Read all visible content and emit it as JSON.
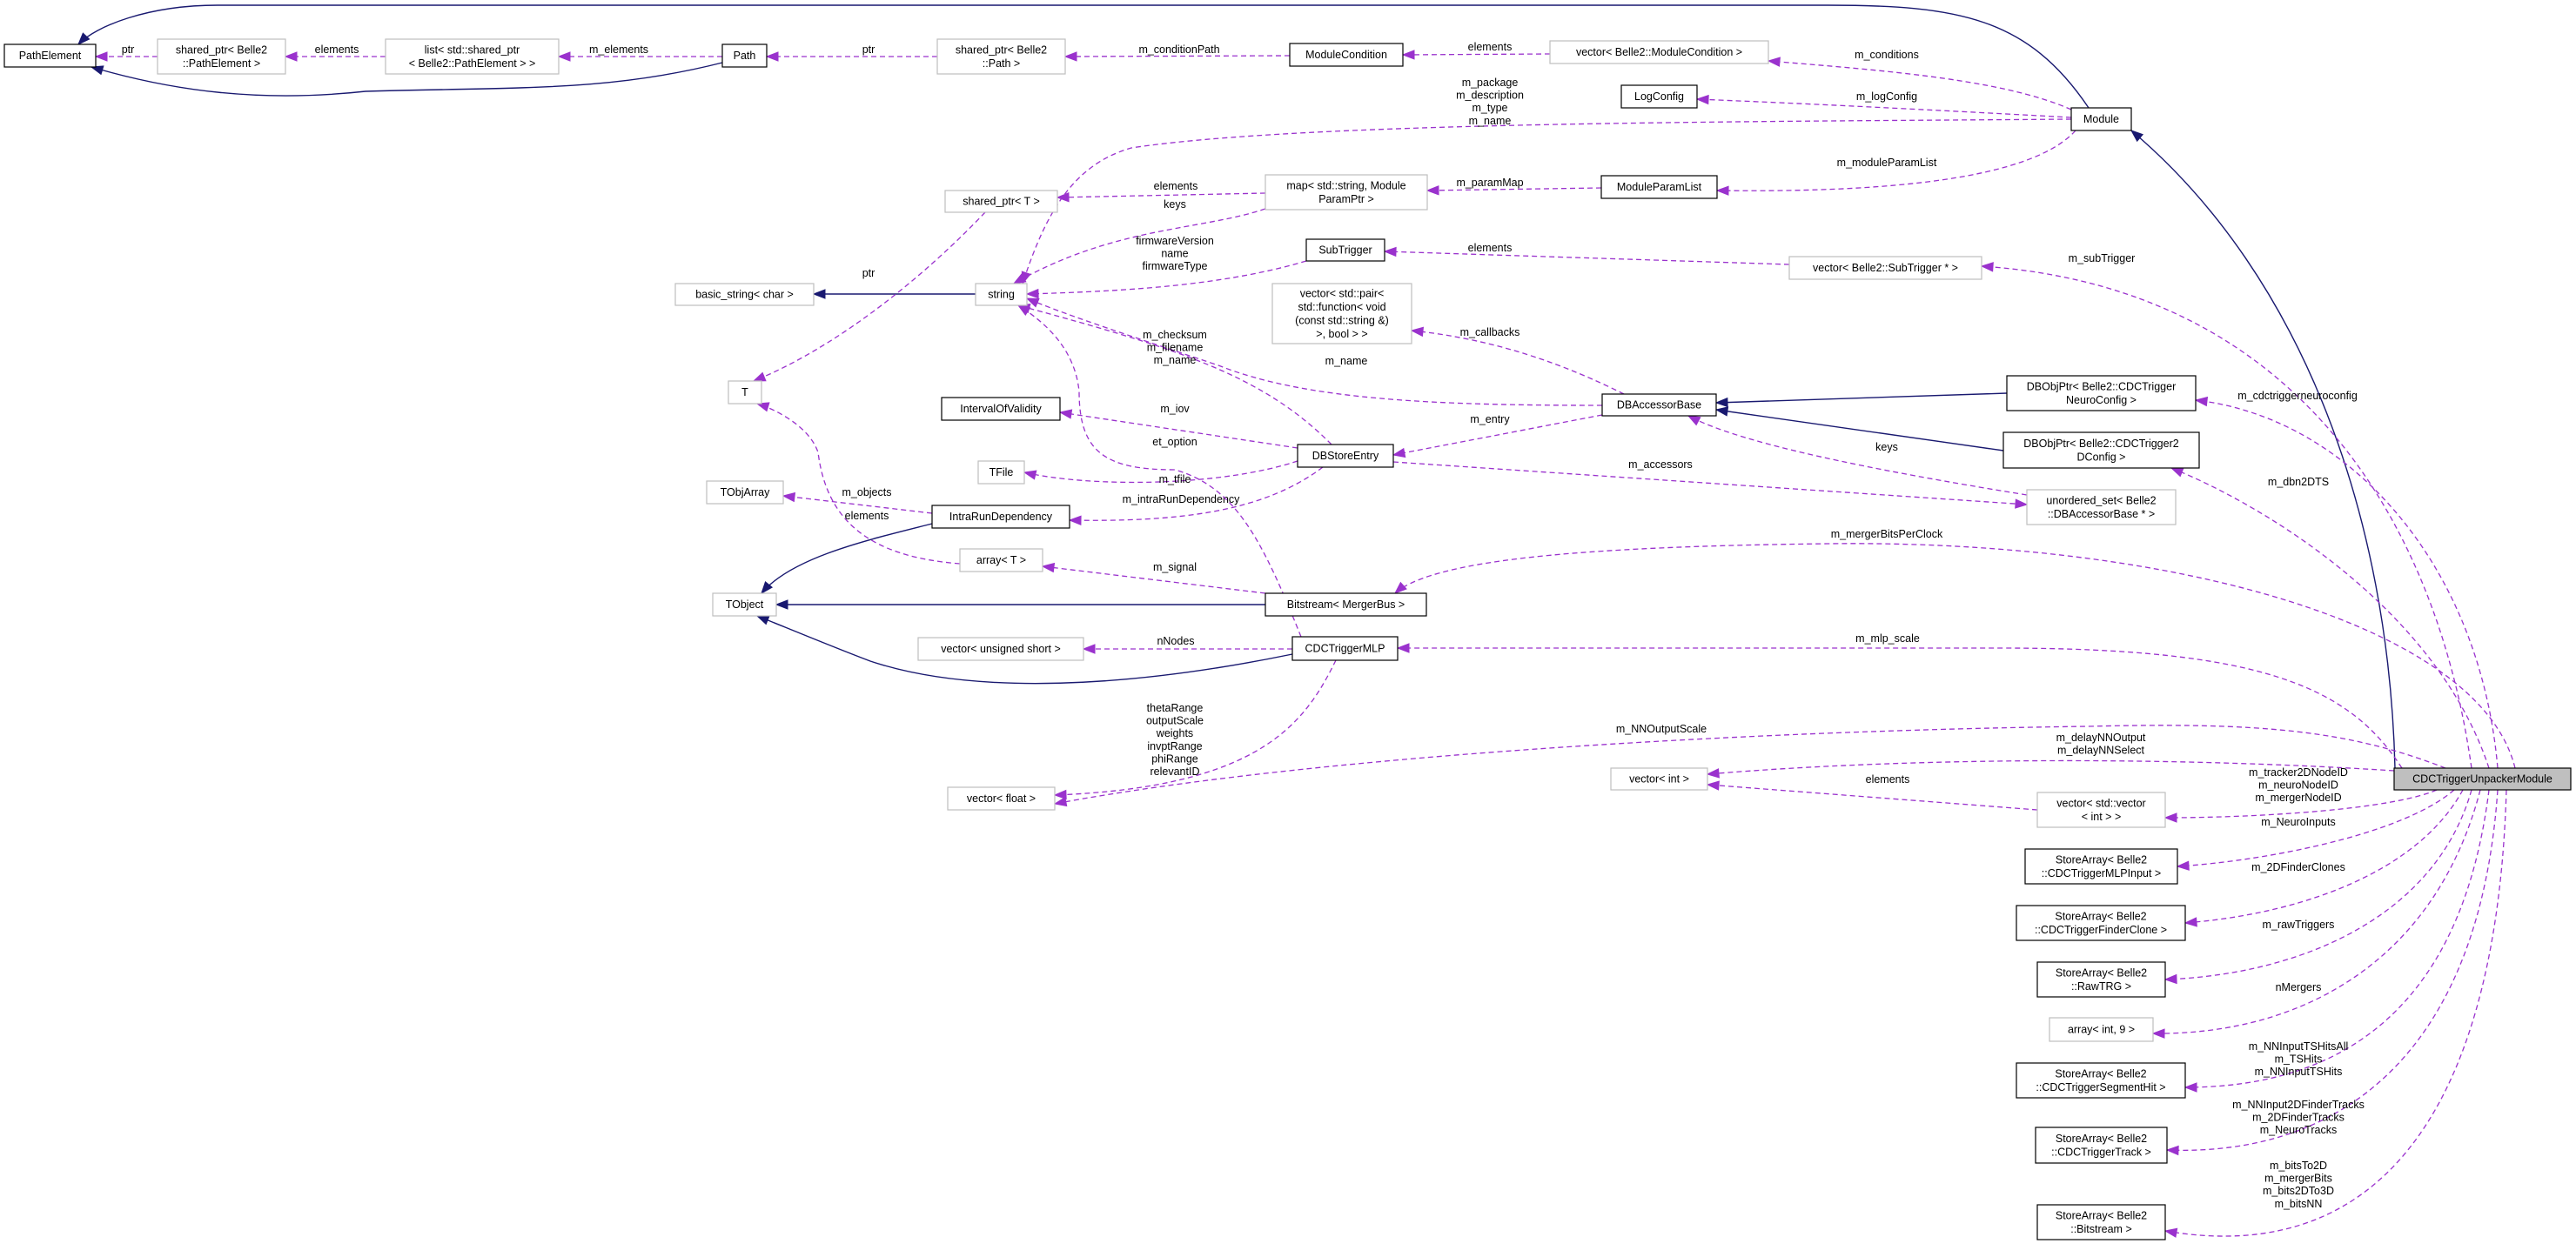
{
  "diagram": {
    "colors": {
      "inheritance": "#191970",
      "usage": "#9a32cd",
      "highlight_fill": "#bfbfbf",
      "documented_border": "#000000",
      "undocumented_border": "#bfbfbf"
    },
    "nodes": [
      {
        "id": "PathElement",
        "lines": [
          "PathElement"
        ],
        "documented": true
      },
      {
        "id": "spPE",
        "lines": [
          "shared_ptr< Belle2",
          "::PathElement >"
        ],
        "documented": false
      },
      {
        "id": "listSP",
        "lines": [
          "list< std::shared_ptr",
          "< Belle2::PathElement > >"
        ],
        "documented": false
      },
      {
        "id": "Path",
        "lines": [
          "Path"
        ],
        "documented": true
      },
      {
        "id": "spPath",
        "lines": [
          "shared_ptr< Belle2",
          "::Path >"
        ],
        "documented": false
      },
      {
        "id": "ModuleCondition",
        "lines": [
          "ModuleCondition"
        ],
        "documented": true
      },
      {
        "id": "vecMC",
        "lines": [
          "vector< Belle2::ModuleCondition >"
        ],
        "documented": false
      },
      {
        "id": "LogConfig",
        "lines": [
          "LogConfig"
        ],
        "documented": true
      },
      {
        "id": "Module",
        "lines": [
          "Module"
        ],
        "documented": true
      },
      {
        "id": "map",
        "lines": [
          "map< std::string, Module",
          "ParamPtr >"
        ],
        "documented": false
      },
      {
        "id": "ModuleParamList",
        "lines": [
          "ModuleParamList"
        ],
        "documented": true
      },
      {
        "id": "spT",
        "lines": [
          "shared_ptr< T >"
        ],
        "documented": false
      },
      {
        "id": "SubTrigger",
        "lines": [
          "SubTrigger"
        ],
        "documented": true
      },
      {
        "id": "vecSubTrig",
        "lines": [
          "vector< Belle2::SubTrigger * >"
        ],
        "documented": false
      },
      {
        "id": "basic_string",
        "lines": [
          "basic_string< char >"
        ],
        "documented": false
      },
      {
        "id": "string",
        "lines": [
          "string"
        ],
        "documented": false
      },
      {
        "id": "vecPair",
        "lines": [
          "vector< std::pair<",
          "std::function< void",
          "(const std::string &)",
          ">, bool > >"
        ],
        "documented": false
      },
      {
        "id": "T",
        "lines": [
          "T"
        ],
        "documented": false
      },
      {
        "id": "DBAccessorBase",
        "lines": [
          "DBAccessorBase"
        ],
        "documented": true
      },
      {
        "id": "DBObjNeuro",
        "lines": [
          "DBObjPtr< Belle2::CDCTrigger",
          "NeuroConfig >"
        ],
        "documented": true
      },
      {
        "id": "DBObj2D",
        "lines": [
          "DBObjPtr< Belle2::CDCTrigger2",
          "DConfig >"
        ],
        "documented": true
      },
      {
        "id": "IoV",
        "lines": [
          "IntervalOfValidity"
        ],
        "documented": true
      },
      {
        "id": "DBStoreEntry",
        "lines": [
          "DBStoreEntry"
        ],
        "documented": true
      },
      {
        "id": "TFile",
        "lines": [
          "TFile"
        ],
        "documented": false
      },
      {
        "id": "TObjArray",
        "lines": [
          "TObjArray"
        ],
        "documented": false
      },
      {
        "id": "unorderedSet",
        "lines": [
          "unordered_set< Belle2",
          "::DBAccessorBase * >"
        ],
        "documented": false
      },
      {
        "id": "IntraRun",
        "lines": [
          "IntraRunDependency"
        ],
        "documented": true
      },
      {
        "id": "arrayT",
        "lines": [
          "array< T >"
        ],
        "documented": false
      },
      {
        "id": "TObject",
        "lines": [
          "TObject"
        ],
        "documented": false
      },
      {
        "id": "Bitstream",
        "lines": [
          "Bitstream< MergerBus >"
        ],
        "documented": true
      },
      {
        "id": "MLP",
        "lines": [
          "CDCTriggerMLP"
        ],
        "documented": true
      },
      {
        "id": "vecUShort",
        "lines": [
          "vector< unsigned short >"
        ],
        "documented": false
      },
      {
        "id": "vecInt",
        "lines": [
          "vector< int >"
        ],
        "documented": false
      },
      {
        "id": "Unpacker",
        "lines": [
          "CDCTriggerUnpackerModule"
        ],
        "documented": true,
        "highlighted": true
      },
      {
        "id": "vecFloat",
        "lines": [
          "vector< float >"
        ],
        "documented": false
      },
      {
        "id": "vecVecInt",
        "lines": [
          "vector< std::vector",
          "< int > >"
        ],
        "documented": false
      },
      {
        "id": "saMLPInput",
        "lines": [
          "StoreArray< Belle2",
          "::CDCTriggerMLPInput >"
        ],
        "documented": true
      },
      {
        "id": "saFinderClone",
        "lines": [
          "StoreArray< Belle2",
          "::CDCTriggerFinderClone >"
        ],
        "documented": true
      },
      {
        "id": "saRawTRG",
        "lines": [
          "StoreArray< Belle2",
          "::RawTRG >"
        ],
        "documented": true
      },
      {
        "id": "array9",
        "lines": [
          "array< int, 9 >"
        ],
        "documented": false
      },
      {
        "id": "saSegment",
        "lines": [
          "StoreArray< Belle2",
          "::CDCTriggerSegmentHit >"
        ],
        "documented": true
      },
      {
        "id": "saTrack",
        "lines": [
          "StoreArray< Belle2",
          "::CDCTriggerTrack >"
        ],
        "documented": true
      },
      {
        "id": "saBitstream",
        "lines": [
          "StoreArray< Belle2",
          "::Bitstream >"
        ],
        "documented": true
      }
    ],
    "edges": [
      {
        "from": "Module",
        "to": "PathElement",
        "kind": "inheritance",
        "labels": []
      },
      {
        "from": "Path",
        "to": "PathElement",
        "kind": "inheritance",
        "labels": []
      },
      {
        "from": "string",
        "to": "basic_string",
        "kind": "inheritance",
        "labels": []
      },
      {
        "from": "Unpacker",
        "to": "Module",
        "kind": "inheritance",
        "labels": []
      },
      {
        "from": "DBObjNeuro",
        "to": "DBAccessorBase",
        "kind": "inheritance",
        "labels": []
      },
      {
        "from": "DBObj2D",
        "to": "DBAccessorBase",
        "kind": "inheritance",
        "labels": []
      },
      {
        "from": "IntraRun",
        "to": "TObject",
        "kind": "inheritance",
        "labels": []
      },
      {
        "from": "Bitstream",
        "to": "TObject",
        "kind": "inheritance",
        "labels": []
      },
      {
        "from": "MLP",
        "to": "TObject",
        "kind": "inheritance",
        "labels": []
      },
      {
        "from": "spPE",
        "to": "PathElement",
        "kind": "usage",
        "labels": [
          "ptr"
        ]
      },
      {
        "from": "listSP",
        "to": "spPE",
        "kind": "usage",
        "labels": [
          "elements"
        ]
      },
      {
        "from": "Path",
        "to": "listSP",
        "kind": "usage",
        "labels": [
          "m_elements"
        ]
      },
      {
        "from": "spPath",
        "to": "Path",
        "kind": "usage",
        "labels": [
          "ptr"
        ]
      },
      {
        "from": "ModuleCondition",
        "to": "spPath",
        "kind": "usage",
        "labels": [
          "m_conditionPath"
        ]
      },
      {
        "from": "vecMC",
        "to": "ModuleCondition",
        "kind": "usage",
        "labels": [
          "elements"
        ]
      },
      {
        "from": "Module",
        "to": "vecMC",
        "kind": "usage",
        "labels": [
          "m_conditions"
        ]
      },
      {
        "from": "Module",
        "to": "LogConfig",
        "kind": "usage",
        "labels": [
          "m_logConfig"
        ]
      },
      {
        "from": "Module",
        "to": "string",
        "kind": "usage",
        "labels": [
          "m_package",
          "m_description",
          "m_type",
          "m_name"
        ]
      },
      {
        "from": "Module",
        "to": "ModuleParamList",
        "kind": "usage",
        "labels": [
          "m_moduleParamList"
        ]
      },
      {
        "from": "ModuleParamList",
        "to": "map",
        "kind": "usage",
        "labels": [
          "m_paramMap"
        ]
      },
      {
        "from": "map",
        "to": "spT",
        "kind": "usage",
        "labels": [
          "elements"
        ]
      },
      {
        "from": "map",
        "to": "string",
        "kind": "usage",
        "labels": [
          "keys"
        ]
      },
      {
        "from": "spT",
        "to": "T",
        "kind": "usage",
        "labels": [
          "ptr"
        ]
      },
      {
        "from": "SubTrigger",
        "to": "string",
        "kind": "usage",
        "labels": [
          "firmwareVersion",
          "name",
          "firmwareType"
        ]
      },
      {
        "from": "vecSubTrig",
        "to": "SubTrigger",
        "kind": "usage",
        "labels": [
          "elements"
        ]
      },
      {
        "from": "Unpacker",
        "to": "vecSubTrig",
        "kind": "usage",
        "labels": [
          "m_subTrigger"
        ]
      },
      {
        "from": "DBAccessorBase",
        "to": "vecPair",
        "kind": "usage",
        "labels": [
          "m_callbacks"
        ]
      },
      {
        "from": "DBAccessorBase",
        "to": "string",
        "kind": "usage",
        "labels": [
          "m_name"
        ]
      },
      {
        "from": "DBStoreEntry",
        "to": "string",
        "kind": "usage",
        "labels": [
          "m_checksum",
          "m_filename",
          "m_name"
        ]
      },
      {
        "from": "DBStoreEntry",
        "to": "IoV",
        "kind": "usage",
        "labels": [
          "m_iov"
        ]
      },
      {
        "from": "DBStoreEntry",
        "to": "TFile",
        "kind": "usage",
        "labels": [
          "m_tfile"
        ]
      },
      {
        "from": "DBStoreEntry",
        "to": "IntraRun",
        "kind": "usage",
        "labels": [
          "m_intraRunDependency"
        ]
      },
      {
        "from": "DBAccessorBase",
        "to": "DBStoreEntry",
        "kind": "usage",
        "labels": [
          "m_entry"
        ]
      },
      {
        "from": "DBStoreEntry",
        "to": "unorderedSet",
        "kind": "usage",
        "labels": [
          "m_accessors"
        ]
      },
      {
        "from": "unorderedSet",
        "to": "DBAccessorBase",
        "kind": "usage",
        "labels": [
          "keys"
        ]
      },
      {
        "from": "Unpacker",
        "to": "DBObjNeuro",
        "kind": "usage",
        "labels": [
          "m_cdctriggerneuroconfig"
        ]
      },
      {
        "from": "Unpacker",
        "to": "DBObj2D",
        "kind": "usage",
        "labels": [
          "m_dbn2DTS"
        ]
      },
      {
        "from": "IntraRun",
        "to": "TObjArray",
        "kind": "usage",
        "labels": [
          "m_objects"
        ]
      },
      {
        "from": "arrayT",
        "to": "T",
        "kind": "usage",
        "labels": [
          "elements"
        ]
      },
      {
        "from": "Bitstream",
        "to": "arrayT",
        "kind": "usage",
        "labels": [
          "m_signal"
        ]
      },
      {
        "from": "Unpacker",
        "to": "Bitstream",
        "kind": "usage",
        "labels": [
          "m_mergerBitsPerClock"
        ]
      },
      {
        "from": "MLP",
        "to": "string",
        "kind": "usage",
        "labels": [
          "et_option"
        ]
      },
      {
        "from": "MLP",
        "to": "vecUShort",
        "kind": "usage",
        "labels": [
          "nNodes"
        ]
      },
      {
        "from": "MLP",
        "to": "vecFloat",
        "kind": "usage",
        "labels": [
          "thetaRange",
          "outputScale",
          "weights",
          "invptRange",
          "phiRange",
          "relevantID"
        ]
      },
      {
        "from": "Unpacker",
        "to": "MLP",
        "kind": "usage",
        "labels": [
          "m_mlp_scale"
        ]
      },
      {
        "from": "Unpacker",
        "to": "vecFloat",
        "kind": "usage",
        "labels": [
          "m_NNOutputScale"
        ]
      },
      {
        "from": "Unpacker",
        "to": "vecInt",
        "kind": "usage",
        "labels": [
          "m_delayNNOutput",
          "m_delayNNSelect"
        ]
      },
      {
        "from": "vecVecInt",
        "to": "vecInt",
        "kind": "usage",
        "labels": [
          "elements"
        ]
      },
      {
        "from": "Unpacker",
        "to": "vecVecInt",
        "kind": "usage",
        "labels": [
          "m_tracker2DNodeID",
          "m_neuroNodeID",
          "m_mergerNodeID"
        ]
      },
      {
        "from": "Unpacker",
        "to": "saMLPInput",
        "kind": "usage",
        "labels": [
          "m_NeuroInputs"
        ]
      },
      {
        "from": "Unpacker",
        "to": "saFinderClone",
        "kind": "usage",
        "labels": [
          "m_2DFinderClones"
        ]
      },
      {
        "from": "Unpacker",
        "to": "saRawTRG",
        "kind": "usage",
        "labels": [
          "m_rawTriggers"
        ]
      },
      {
        "from": "Unpacker",
        "to": "array9",
        "kind": "usage",
        "labels": [
          "nMergers"
        ]
      },
      {
        "from": "Unpacker",
        "to": "saSegment",
        "kind": "usage",
        "labels": [
          "m_NNInputTSHitsAll",
          "m_TSHits",
          "m_NNInputTSHits"
        ]
      },
      {
        "from": "Unpacker",
        "to": "saTrack",
        "kind": "usage",
        "labels": [
          "m_NNInput2DFinderTracks",
          "m_2DFinderTracks",
          "m_NeuroTracks"
        ]
      },
      {
        "from": "Unpacker",
        "to": "saBitstream",
        "kind": "usage",
        "labels": [
          "m_bitsTo2D",
          "m_mergerBits",
          "m_bits2DTo3D",
          "m_bitsNN"
        ]
      }
    ]
  }
}
